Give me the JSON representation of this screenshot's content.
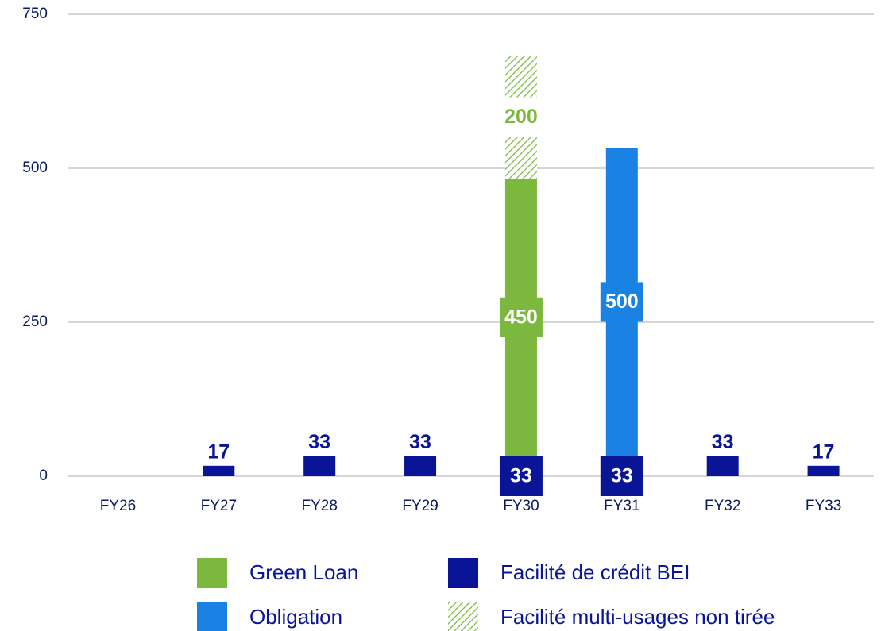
{
  "chart_data": {
    "type": "stacked_bar",
    "categories": [
      "FY26",
      "FY27",
      "FY28",
      "FY29",
      "FY30",
      "FY31",
      "FY32",
      "FY33"
    ],
    "series": [
      {
        "name": "Facilité de crédit BEI",
        "color": "#0a1496",
        "values": [
          null,
          17,
          33,
          33,
          33,
          33,
          33,
          17
        ]
      },
      {
        "name": "Green Loan",
        "color": "#7db83e",
        "values": [
          null,
          null,
          null,
          null,
          450,
          null,
          null,
          null
        ]
      },
      {
        "name": "Obligation",
        "color": "#1a82e2",
        "values": [
          null,
          null,
          null,
          null,
          null,
          500,
          null,
          null
        ]
      },
      {
        "name": "Facilité multi-usages non tirée",
        "color": "#7db83e",
        "hatched": true,
        "values": [
          null,
          null,
          null,
          null,
          200,
          null,
          null,
          null
        ]
      }
    ],
    "ylim": [
      0,
      750
    ],
    "yticks": [
      0,
      250,
      500,
      750
    ],
    "grid": true
  }
}
